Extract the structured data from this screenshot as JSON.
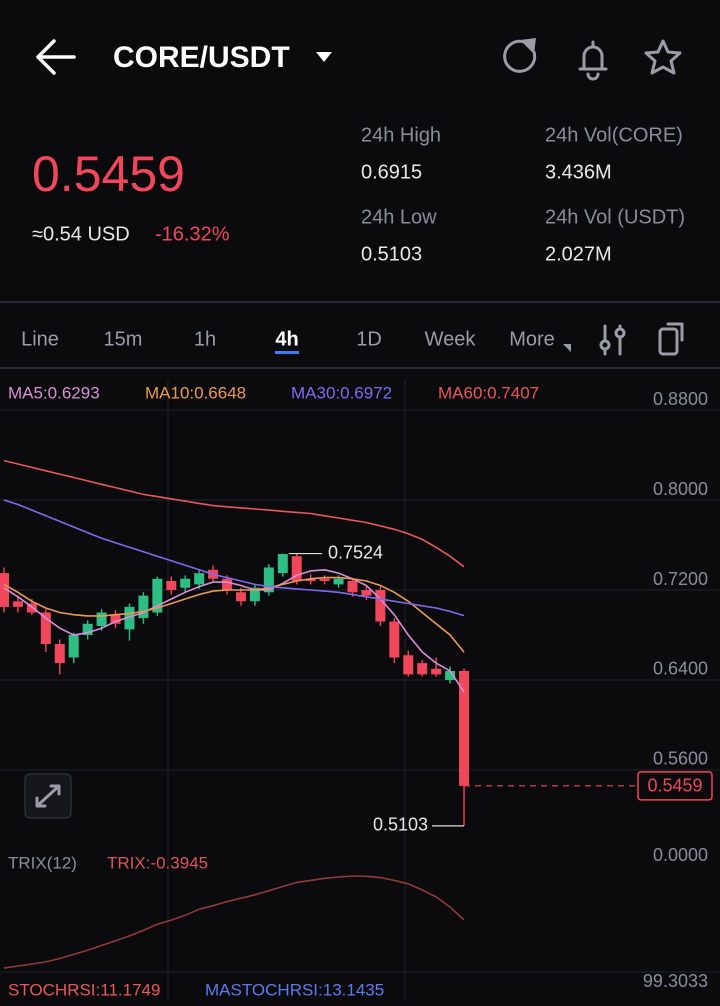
{
  "header": {
    "title": "CORE/USDT"
  },
  "ticker": {
    "price": "0.5459",
    "usd": "≈0.54 USD",
    "change": "-16.32%",
    "stats": [
      {
        "label": "24h High",
        "value": "0.6915"
      },
      {
        "label": "24h Vol(CORE)",
        "value": "3.436M"
      },
      {
        "label": "24h Low",
        "value": "0.5103"
      },
      {
        "label": "24h Vol (USDT)",
        "value": "2.027M"
      }
    ]
  },
  "tabs": {
    "items": [
      "Line",
      "15m",
      "1h",
      "4h",
      "1D",
      "Week",
      "More"
    ],
    "active": 3
  },
  "chart_data": [
    {
      "type": "candlestick",
      "up_color": "#2dbd85",
      "down_color": "#f0475c",
      "grid": true,
      "ylim": [
        0.4933,
        0.9067
      ],
      "yticks": [
        {
          "value": 0.88,
          "label": "0.8800"
        },
        {
          "value": 0.8,
          "label": "0.8000"
        },
        {
          "value": 0.72,
          "label": "0.7200"
        },
        {
          "value": 0.64,
          "label": "0.6400"
        },
        {
          "value": 0.56,
          "label": "0.5600"
        }
      ],
      "candles": [
        {
          "open": 0.735,
          "high": 0.74,
          "low": 0.7,
          "close": 0.705
        },
        {
          "open": 0.71,
          "high": 0.715,
          "low": 0.7,
          "close": 0.705
        },
        {
          "open": 0.708,
          "high": 0.712,
          "low": 0.698,
          "close": 0.7
        },
        {
          "open": 0.7,
          "high": 0.703,
          "low": 0.665,
          "close": 0.672
        },
        {
          "open": 0.672,
          "high": 0.676,
          "low": 0.645,
          "close": 0.655
        },
        {
          "open": 0.66,
          "high": 0.682,
          "low": 0.655,
          "close": 0.68
        },
        {
          "open": 0.68,
          "high": 0.693,
          "low": 0.676,
          "close": 0.69
        },
        {
          "open": 0.688,
          "high": 0.703,
          "low": 0.684,
          "close": 0.7
        },
        {
          "open": 0.698,
          "high": 0.702,
          "low": 0.686,
          "close": 0.69
        },
        {
          "open": 0.685,
          "high": 0.708,
          "low": 0.675,
          "close": 0.705
        },
        {
          "open": 0.695,
          "high": 0.718,
          "low": 0.69,
          "close": 0.715
        },
        {
          "open": 0.7,
          "high": 0.732,
          "low": 0.697,
          "close": 0.73
        },
        {
          "open": 0.728,
          "high": 0.732,
          "low": 0.716,
          "close": 0.72
        },
        {
          "open": 0.722,
          "high": 0.733,
          "low": 0.718,
          "close": 0.73
        },
        {
          "open": 0.725,
          "high": 0.738,
          "low": 0.721,
          "close": 0.735
        },
        {
          "open": 0.738,
          "high": 0.742,
          "low": 0.727,
          "close": 0.73
        },
        {
          "open": 0.73,
          "high": 0.733,
          "low": 0.716,
          "close": 0.72
        },
        {
          "open": 0.718,
          "high": 0.722,
          "low": 0.706,
          "close": 0.71
        },
        {
          "open": 0.71,
          "high": 0.725,
          "low": 0.706,
          "close": 0.722
        },
        {
          "open": 0.718,
          "high": 0.743,
          "low": 0.715,
          "close": 0.74
        },
        {
          "open": 0.735,
          "high": 0.7524,
          "low": 0.732,
          "close": 0.752
        },
        {
          "open": 0.75,
          "high": 0.752,
          "low": 0.725,
          "close": 0.728
        },
        {
          "open": 0.73,
          "high": 0.734,
          "low": 0.725,
          "close": 0.728
        },
        {
          "open": 0.73,
          "high": 0.733,
          "low": 0.725,
          "close": 0.728
        },
        {
          "open": 0.725,
          "high": 0.733,
          "low": 0.722,
          "close": 0.73
        },
        {
          "open": 0.728,
          "high": 0.731,
          "low": 0.714,
          "close": 0.718
        },
        {
          "open": 0.72,
          "high": 0.724,
          "low": 0.711,
          "close": 0.715
        },
        {
          "open": 0.72,
          "high": 0.723,
          "low": 0.688,
          "close": 0.692
        },
        {
          "open": 0.692,
          "high": 0.695,
          "low": 0.655,
          "close": 0.66
        },
        {
          "open": 0.662,
          "high": 0.666,
          "low": 0.643,
          "close": 0.645
        },
        {
          "open": 0.655,
          "high": 0.658,
          "low": 0.643,
          "close": 0.645
        },
        {
          "open": 0.65,
          "high": 0.66,
          "low": 0.643,
          "close": 0.645
        },
        {
          "open": 0.64,
          "high": 0.652,
          "low": 0.637,
          "close": 0.648
        },
        {
          "open": 0.648,
          "high": 0.65,
          "low": 0.5103,
          "close": 0.5459
        }
      ],
      "series": [
        {
          "name": "MA5:0.6293",
          "color": "#d78fd6",
          "values": [
            0.722,
            0.714,
            0.705,
            0.695,
            0.686,
            0.68,
            0.682,
            0.686,
            0.692,
            0.696,
            0.7,
            0.706,
            0.712,
            0.718,
            0.723,
            0.727,
            0.727,
            0.724,
            0.72,
            0.72,
            0.726,
            0.733,
            0.737,
            0.738,
            0.735,
            0.73,
            0.724,
            0.712,
            0.698,
            0.68,
            0.665,
            0.655,
            0.648,
            0.6293
          ]
        },
        {
          "name": "MA10:0.6648",
          "color": "#eb9a53",
          "values": [
            0.725,
            0.718,
            0.71,
            0.704,
            0.7,
            0.698,
            0.697,
            0.697,
            0.698,
            0.699,
            0.701,
            0.704,
            0.708,
            0.712,
            0.716,
            0.719,
            0.72,
            0.72,
            0.72,
            0.722,
            0.725,
            0.728,
            0.73,
            0.731,
            0.731,
            0.73,
            0.728,
            0.724,
            0.718,
            0.71,
            0.7,
            0.69,
            0.68,
            0.6648
          ]
        },
        {
          "name": "MA30:0.6972",
          "color": "#7c6cf0",
          "values": [
            0.8,
            0.796,
            0.791,
            0.786,
            0.781,
            0.776,
            0.771,
            0.766,
            0.762,
            0.758,
            0.754,
            0.75,
            0.746,
            0.742,
            0.738,
            0.734,
            0.731,
            0.728,
            0.725,
            0.723,
            0.722,
            0.721,
            0.72,
            0.719,
            0.718,
            0.716,
            0.714,
            0.712,
            0.71,
            0.708,
            0.706,
            0.704,
            0.701,
            0.6972
          ]
        },
        {
          "name": "MA60:0.7407",
          "color": "#e9575c",
          "values": [
            0.835,
            0.832,
            0.829,
            0.826,
            0.823,
            0.82,
            0.817,
            0.814,
            0.811,
            0.808,
            0.805,
            0.803,
            0.801,
            0.799,
            0.797,
            0.795,
            0.794,
            0.793,
            0.792,
            0.791,
            0.79,
            0.789,
            0.788,
            0.786,
            0.784,
            0.782,
            0.78,
            0.777,
            0.774,
            0.77,
            0.765,
            0.758,
            0.75,
            0.7407
          ]
        }
      ]
    },
    {
      "type": "line",
      "title": "TRIX(12)",
      "ylim": [
        -0.8,
        0
      ],
      "yticks": [
        {
          "value": 0,
          "label": "0.0000"
        }
      ],
      "series": [
        {
          "name": "TRIX:-0.3945",
          "color": "#8e3a3e",
          "values": [
            -0.745,
            -0.73,
            -0.715,
            -0.7,
            -0.675,
            -0.645,
            -0.615,
            -0.58,
            -0.545,
            -0.51,
            -0.47,
            -0.425,
            -0.395,
            -0.36,
            -0.315,
            -0.29,
            -0.26,
            -0.235,
            -0.21,
            -0.18,
            -0.15,
            -0.12,
            -0.105,
            -0.09,
            -0.08,
            -0.073,
            -0.075,
            -0.085,
            -0.105,
            -0.13,
            -0.175,
            -0.225,
            -0.3,
            -0.3945
          ]
        }
      ]
    },
    {
      "type": "indicator",
      "yticks": [
        99.3033
      ],
      "legend": [
        {
          "text": "STOCHRSI:11.1749",
          "color": "#e9575c"
        },
        {
          "text": "MASTOCHRSI:13.1435",
          "color": "#5b7bf0"
        }
      ]
    }
  ]
}
